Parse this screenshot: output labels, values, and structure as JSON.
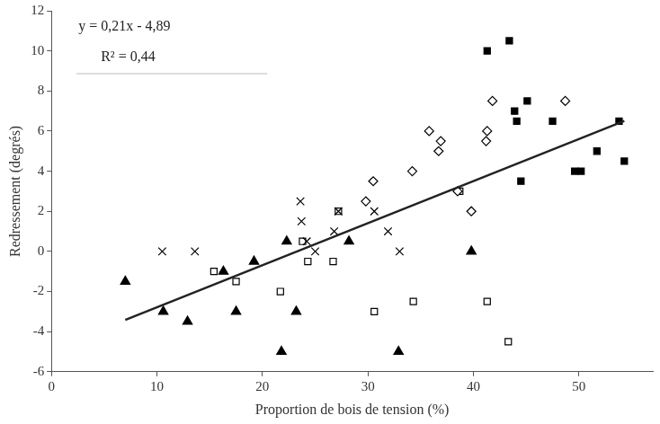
{
  "chart_data": {
    "type": "scatter",
    "x_label": "Proportion de bois de tension (%)",
    "y_label": "Redressement (degrés)",
    "annotations": [
      "y = 0,21x - 4,89",
      "R² = 0,44"
    ],
    "xlim": [
      0,
      57
    ],
    "xticks": [
      0,
      10,
      20,
      30,
      40,
      50
    ],
    "ylim": [
      -6,
      12
    ],
    "yticks": [
      -6,
      -4,
      -2,
      0,
      2,
      4,
      6,
      8,
      10,
      12
    ],
    "grid": false,
    "series": [
      {
        "color": "#000000",
        "marker": "square",
        "x": [
          41.3,
          43.4,
          43.9,
          44.1,
          45.1,
          44.5,
          47.5,
          49.6,
          50.2,
          51.7,
          53.8,
          54.3
        ],
        "values": [
          10,
          10.5,
          7,
          6.5,
          7.5,
          3.5,
          6.5,
          4,
          4,
          5,
          6.5,
          4.5
        ]
      },
      {
        "color": "#000000",
        "marker": "diamond-open",
        "x": [
          29.8,
          30.5,
          34.2,
          35.8,
          36.7,
          36.9,
          38.5,
          39.8,
          41.2,
          41.3,
          41.8,
          48.7
        ],
        "values": [
          2.5,
          3.5,
          4,
          6,
          5,
          5.5,
          3,
          2,
          5.5,
          6,
          7.5,
          7.5
        ]
      },
      {
        "color": "#000000",
        "marker": "x",
        "x": [
          10.5,
          13.6,
          23.6,
          23.7,
          24.2,
          25,
          26.8,
          27.2,
          30.6,
          31.9,
          33
        ],
        "values": [
          0,
          0,
          2.5,
          1.5,
          0.5,
          0,
          1,
          2,
          2,
          1,
          0
        ]
      },
      {
        "color": "#000000",
        "marker": "square-open",
        "x": [
          15.4,
          17.5,
          21.7,
          23.8,
          24.3,
          26.7,
          27.2,
          30.6,
          34.3,
          38.7,
          41.3,
          43.3
        ],
        "values": [
          -1,
          -1.5,
          -2,
          0.5,
          -0.5,
          -0.5,
          2,
          -3,
          -2.5,
          3,
          -2.5,
          -4.5
        ]
      },
      {
        "color": "#000000",
        "marker": "triangle",
        "x": [
          7,
          10.6,
          12.9,
          16.3,
          17.5,
          19.2,
          21.8,
          22.3,
          23.2,
          28.2,
          32.9,
          39.8
        ],
        "values": [
          -1.5,
          -3,
          -3.5,
          -1,
          -3,
          -0.5,
          -5,
          0.5,
          -3,
          0.5,
          -5,
          0
        ]
      },
      {
        "type": "line",
        "color": "#222222",
        "marker": "none",
        "line_style": "solid",
        "x": [
          7,
          54.3
        ],
        "values": [
          -3.42,
          6.51
        ]
      }
    ]
  }
}
